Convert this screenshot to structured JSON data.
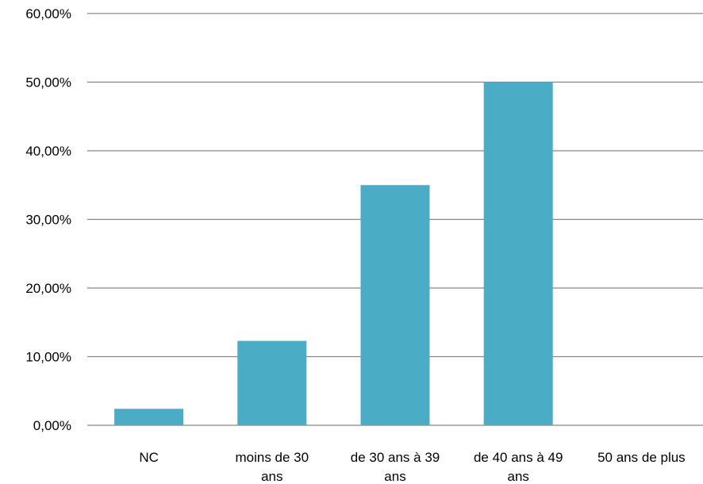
{
  "chart_data": {
    "type": "bar",
    "categories": [
      [
        "NC"
      ],
      [
        "moins de 30",
        "ans"
      ],
      [
        "de 30 ans à  39",
        "ans"
      ],
      [
        "de 40 ans à  49",
        "ans"
      ],
      [
        "50 ans de plus"
      ]
    ],
    "values": [
      2.4,
      12.3,
      35.0,
      50.0,
      0.0
    ],
    "y_ticks": [
      "0,00%",
      "10,00%",
      "20,00%",
      "30,00%",
      "40,00%",
      "50,00%",
      "60,00%"
    ],
    "ylim": [
      0,
      60
    ],
    "grid": true,
    "legend": "none",
    "title": "",
    "xlabel": "",
    "ylabel": "",
    "colors": {
      "bar": "#4BACC6",
      "grid": "#868686"
    }
  }
}
